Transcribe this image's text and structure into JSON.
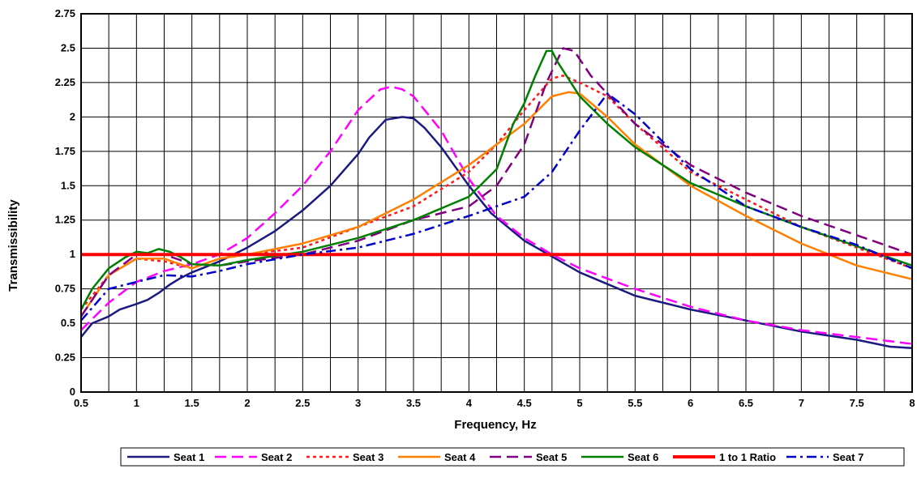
{
  "chart_data": {
    "type": "line",
    "title": "",
    "xlabel": "Frequency, Hz",
    "ylabel": "Transmissibility",
    "xlim": [
      0.5,
      8
    ],
    "ylim": [
      0,
      2.75
    ],
    "x_ticks": [
      "0.5",
      "1",
      "1.5",
      "2",
      "2.5",
      "3",
      "3.5",
      "4",
      "4.5",
      "5",
      "5.5",
      "6",
      "6.5",
      "7",
      "7.5",
      "8"
    ],
    "y_ticks": [
      "0",
      "0.25",
      "0.5",
      "0.75",
      "1",
      "1.25",
      "1.5",
      "1.75",
      "2",
      "2.25",
      "2.5",
      "2.75"
    ],
    "grid": true,
    "legend_position": "bottom",
    "series": [
      {
        "name": "Seat 1",
        "color": "#1a1a80",
        "dash": "solid",
        "x": [
          0.5,
          0.6,
          0.75,
          0.85,
          1,
          1.1,
          1.2,
          1.3,
          1.4,
          1.5,
          1.75,
          2,
          2.25,
          2.5,
          2.75,
          3,
          3.1,
          3.25,
          3.4,
          3.5,
          3.6,
          3.75,
          4,
          4.2,
          4.5,
          5,
          5.5,
          6,
          6.5,
          7,
          7.5,
          7.8,
          8
        ],
        "y": [
          0.4,
          0.5,
          0.55,
          0.6,
          0.64,
          0.67,
          0.72,
          0.78,
          0.83,
          0.87,
          0.95,
          1.05,
          1.17,
          1.32,
          1.5,
          1.73,
          1.85,
          1.98,
          2.0,
          1.99,
          1.92,
          1.78,
          1.5,
          1.3,
          1.1,
          0.87,
          0.7,
          0.6,
          0.52,
          0.44,
          0.38,
          0.33,
          0.32
        ]
      },
      {
        "name": "Seat 2",
        "color": "#ff00ff",
        "dash": "long-dash",
        "x": [
          0.5,
          0.75,
          1,
          1.25,
          1.5,
          1.75,
          2,
          2.25,
          2.5,
          2.75,
          3,
          3.2,
          3.3,
          3.4,
          3.5,
          3.75,
          4,
          4.25,
          4.5,
          4.75,
          5,
          5.5,
          6,
          6.5,
          7,
          7.5,
          8
        ],
        "y": [
          0.45,
          0.65,
          0.8,
          0.88,
          0.93,
          1.0,
          1.12,
          1.3,
          1.5,
          1.75,
          2.05,
          2.2,
          2.22,
          2.2,
          2.15,
          1.9,
          1.55,
          1.28,
          1.12,
          1.0,
          0.9,
          0.75,
          0.62,
          0.52,
          0.45,
          0.4,
          0.35
        ]
      },
      {
        "name": "Seat 3",
        "color": "#ff1a1a",
        "dash": "dot",
        "x": [
          0.5,
          0.75,
          1,
          1.25,
          1.5,
          1.75,
          2,
          2.5,
          3,
          3.5,
          4,
          4.25,
          4.5,
          4.75,
          4.85,
          5,
          5.25,
          5.5,
          6,
          6.5,
          7,
          7.5,
          8
        ],
        "y": [
          0.6,
          0.85,
          0.97,
          0.95,
          0.9,
          0.97,
          1.0,
          1.05,
          1.2,
          1.35,
          1.6,
          1.8,
          2.05,
          2.28,
          2.3,
          2.25,
          2.15,
          1.95,
          1.6,
          1.4,
          1.2,
          1.05,
          0.9
        ]
      },
      {
        "name": "Seat 4",
        "color": "#ff8000",
        "dash": "solid",
        "x": [
          0.5,
          0.75,
          1,
          1.25,
          1.5,
          1.75,
          2,
          2.5,
          3,
          3.5,
          4,
          4.5,
          4.75,
          4.9,
          5,
          5.25,
          5.5,
          6,
          6.5,
          7,
          7.5,
          8
        ],
        "y": [
          0.55,
          0.85,
          0.97,
          0.97,
          0.9,
          0.97,
          1.0,
          1.08,
          1.2,
          1.4,
          1.65,
          1.95,
          2.15,
          2.18,
          2.17,
          2.0,
          1.8,
          1.5,
          1.28,
          1.08,
          0.92,
          0.82
        ]
      },
      {
        "name": "Seat 5",
        "color": "#800080",
        "dash": "long-dash",
        "x": [
          0.5,
          0.75,
          1,
          1.25,
          1.5,
          1.75,
          2,
          2.5,
          3,
          3.5,
          4,
          4.25,
          4.5,
          4.7,
          4.85,
          4.95,
          5.1,
          5.5,
          6,
          6.5,
          7,
          7.5,
          8
        ],
        "y": [
          0.55,
          0.85,
          1.0,
          1.0,
          0.93,
          0.92,
          0.95,
          1.0,
          1.1,
          1.25,
          1.35,
          1.5,
          1.8,
          2.25,
          2.5,
          2.48,
          2.3,
          1.95,
          1.65,
          1.45,
          1.28,
          1.14,
          1.0
        ]
      },
      {
        "name": "Seat 6",
        "color": "#008000",
        "dash": "solid",
        "x": [
          0.5,
          0.6,
          0.75,
          0.9,
          1,
          1.1,
          1.2,
          1.3,
          1.4,
          1.5,
          1.75,
          2,
          2.5,
          3,
          3.5,
          4,
          4.25,
          4.4,
          4.5,
          4.6,
          4.7,
          4.75,
          4.8,
          5,
          5.25,
          5.5,
          6,
          6.5,
          7,
          7.5,
          8
        ],
        "y": [
          0.6,
          0.75,
          0.9,
          0.98,
          1.02,
          1.01,
          1.04,
          1.02,
          0.98,
          0.93,
          0.92,
          0.96,
          1.02,
          1.12,
          1.25,
          1.42,
          1.62,
          1.95,
          2.1,
          2.3,
          2.48,
          2.48,
          2.4,
          2.15,
          1.95,
          1.78,
          1.52,
          1.35,
          1.2,
          1.06,
          0.92
        ]
      },
      {
        "name": "1 to 1 Ratio",
        "color": "#ff0000",
        "dash": "solid-thick",
        "x": [
          0.5,
          8
        ],
        "y": [
          1,
          1
        ]
      },
      {
        "name": "Seat 7",
        "color": "#0000cc",
        "dash": "dash-dot",
        "x": [
          0.5,
          0.75,
          1,
          1.25,
          1.5,
          1.75,
          2,
          2.5,
          3,
          3.5,
          4,
          4.25,
          4.5,
          4.75,
          5,
          5.25,
          5.5,
          6,
          6.5,
          7,
          7.5,
          8
        ],
        "y": [
          0.52,
          0.75,
          0.8,
          0.85,
          0.84,
          0.88,
          0.93,
          1.0,
          1.05,
          1.15,
          1.28,
          1.35,
          1.42,
          1.6,
          1.9,
          2.17,
          2.02,
          1.62,
          1.35,
          1.2,
          1.07,
          0.9
        ]
      }
    ]
  }
}
